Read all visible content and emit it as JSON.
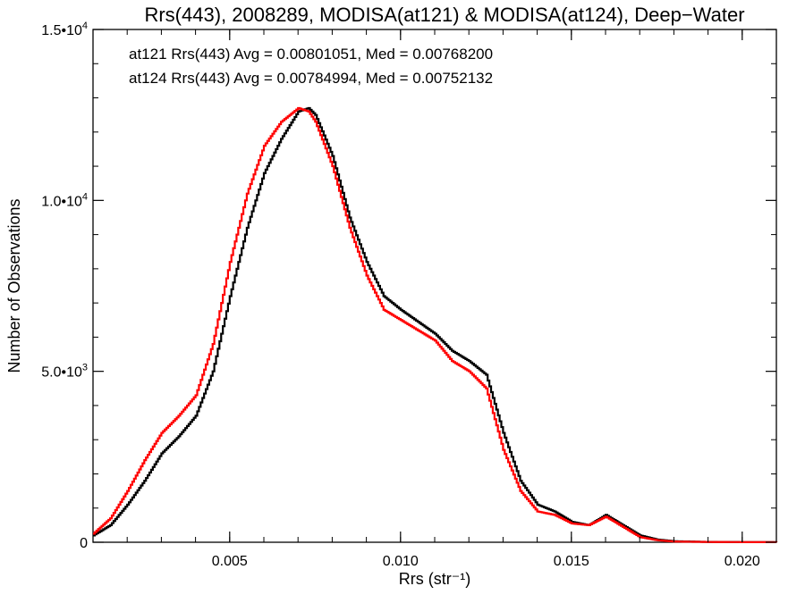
{
  "chart_data": {
    "type": "line",
    "title": "Rrs(443), 2008289, MODISA(at121) & MODISA(at124), Deep−Water",
    "xlabel": "Rrs (str⁻¹)",
    "ylabel": "Number of Observations",
    "xlim": [
      0.001,
      0.021
    ],
    "ylim": [
      0,
      15000
    ],
    "x_ticks": [
      {
        "value": 0.005,
        "label": "0.005"
      },
      {
        "value": 0.01,
        "label": "0.010"
      },
      {
        "value": 0.015,
        "label": "0.015"
      },
      {
        "value": 0.02,
        "label": "0.020"
      }
    ],
    "y_ticks": [
      {
        "value": 0,
        "label": "0"
      },
      {
        "value": 5000,
        "label": "5.0•103"
      },
      {
        "value": 10000,
        "label": "1.0•104"
      },
      {
        "value": 15000,
        "label": "1.5•104"
      }
    ],
    "annotations": [
      {
        "text": "at121 Rrs(443) Avg = 0.00801051, Med = 0.00768200",
        "color": "#000000"
      },
      {
        "text": "at124 Rrs(443) Avg = 0.00784994, Med = 0.00752132",
        "color": "#ff0000"
      }
    ],
    "series": [
      {
        "color": "#000000",
        "x": [
          0.001,
          0.0015,
          0.002,
          0.0025,
          0.003,
          0.0035,
          0.004,
          0.0045,
          0.005,
          0.0055,
          0.006,
          0.0065,
          0.007,
          0.0073,
          0.0075,
          0.008,
          0.0085,
          0.009,
          0.0095,
          0.01,
          0.0105,
          0.011,
          0.0115,
          0.012,
          0.0125,
          0.013,
          0.0135,
          0.014,
          0.0145,
          0.015,
          0.0155,
          0.016,
          0.0165,
          0.017,
          0.0175,
          0.018,
          0.019,
          0.02,
          0.021
        ],
        "y": [
          200,
          500,
          1100,
          1800,
          2600,
          3100,
          3700,
          5000,
          7200,
          9200,
          10800,
          11800,
          12600,
          12700,
          12500,
          11300,
          9500,
          8200,
          7200,
          6800,
          6450,
          6100,
          5600,
          5300,
          4900,
          3200,
          1800,
          1100,
          900,
          600,
          500,
          800,
          500,
          200,
          80,
          30,
          10,
          5,
          2
        ]
      },
      {
        "color": "#ff0000",
        "x": [
          0.001,
          0.0015,
          0.002,
          0.0025,
          0.003,
          0.0035,
          0.004,
          0.0045,
          0.005,
          0.0055,
          0.006,
          0.0065,
          0.007,
          0.0073,
          0.0075,
          0.008,
          0.0085,
          0.009,
          0.0095,
          0.01,
          0.0105,
          0.011,
          0.0115,
          0.012,
          0.0125,
          0.013,
          0.0135,
          0.014,
          0.0145,
          0.015,
          0.0155,
          0.016,
          0.0165,
          0.017,
          0.0175,
          0.018,
          0.019,
          0.02,
          0.021
        ],
        "y": [
          250,
          700,
          1500,
          2400,
          3200,
          3700,
          4300,
          5800,
          8200,
          10200,
          11600,
          12300,
          12700,
          12600,
          12300,
          11000,
          9200,
          7800,
          6800,
          6500,
          6200,
          5900,
          5300,
          5000,
          4500,
          2700,
          1500,
          900,
          800,
          550,
          500,
          750,
          450,
          150,
          60,
          20,
          8,
          4,
          2
        ]
      }
    ]
  }
}
